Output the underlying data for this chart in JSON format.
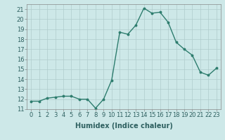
{
  "x": [
    0,
    1,
    2,
    3,
    4,
    5,
    6,
    7,
    8,
    9,
    10,
    11,
    12,
    13,
    14,
    15,
    16,
    17,
    18,
    19,
    20,
    21,
    22,
    23
  ],
  "y": [
    11.8,
    11.8,
    12.1,
    12.2,
    12.3,
    12.3,
    12.0,
    12.0,
    11.1,
    12.0,
    13.9,
    18.7,
    18.5,
    19.4,
    21.1,
    20.6,
    20.7,
    19.7,
    17.7,
    17.0,
    16.4,
    14.7,
    14.4,
    15.1
  ],
  "xlabel": "Humidex (Indice chaleur)",
  "ylim": [
    11,
    21.5
  ],
  "yticks": [
    11,
    12,
    13,
    14,
    15,
    16,
    17,
    18,
    19,
    20,
    21
  ],
  "xticks": [
    0,
    1,
    2,
    3,
    4,
    5,
    6,
    7,
    8,
    9,
    10,
    11,
    12,
    13,
    14,
    15,
    16,
    17,
    18,
    19,
    20,
    21,
    22,
    23
  ],
  "line_color": "#2e7d6e",
  "marker": "o",
  "marker_size": 1.8,
  "line_width": 1.0,
  "bg_color": "#cde8e8",
  "grid_color": "#b0cccc",
  "xlabel_fontsize": 7,
  "tick_fontsize": 6,
  "xlim": [
    -0.5,
    23.5
  ]
}
